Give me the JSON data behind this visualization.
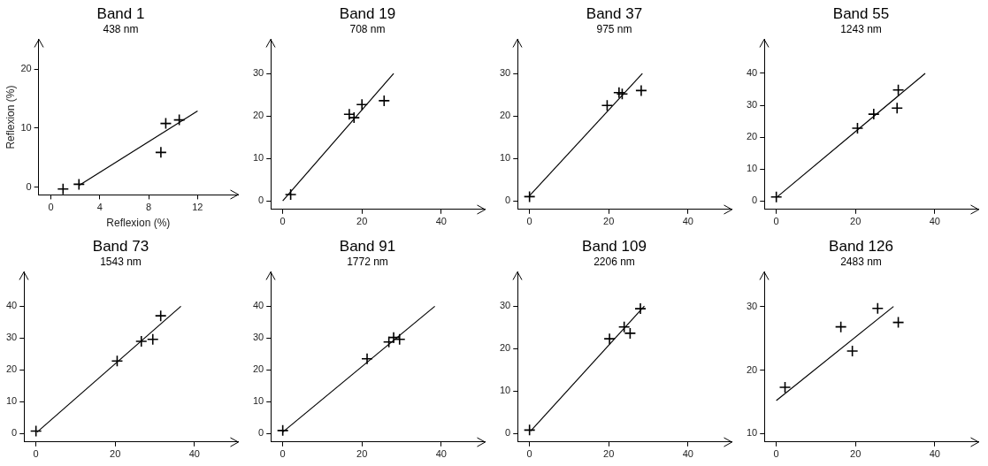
{
  "chart_data": [
    {
      "type": "scatter",
      "title": "Band 1",
      "subtitle": "438 nm",
      "xlabel": "Reflexion (%)",
      "ylabel": "Reflexion (%)",
      "xlim": [
        -1,
        15.3
      ],
      "ylim": [
        -1.3,
        25
      ],
      "xticks": [
        0,
        4,
        8,
        12
      ],
      "yticks": [
        0,
        10,
        20
      ],
      "marker": "cross",
      "grid": false,
      "legend": false,
      "series": [
        {
          "type": "scatter",
          "color": "#000000",
          "x": [
            1.0,
            2.3,
            9.0,
            9.4,
            10.5
          ],
          "values": [
            -0.3,
            0.5,
            5.9,
            10.8,
            11.4
          ]
        },
        {
          "type": "line",
          "color": "#000000",
          "marker": "none",
          "x": [
            2.3,
            12
          ],
          "values": [
            0.3,
            12.9
          ]
        }
      ]
    },
    {
      "type": "scatter",
      "title": "Band 19",
      "subtitle": "708 nm",
      "xlim": [
        -3,
        51
      ],
      "ylim": [
        -2,
        38
      ],
      "xticks": [
        0,
        20,
        40
      ],
      "yticks": [
        0,
        10,
        20,
        30
      ],
      "marker": "cross",
      "grid": false,
      "legend": false,
      "series": [
        {
          "type": "scatter",
          "color": "#000000",
          "x": [
            2,
            16.8,
            18,
            20,
            25.6
          ],
          "values": [
            1.5,
            20.4,
            19.6,
            22.7,
            23.6
          ]
        },
        {
          "type": "line",
          "color": "#000000",
          "marker": "none",
          "x": [
            0,
            28
          ],
          "values": [
            0,
            30
          ]
        }
      ]
    },
    {
      "type": "scatter",
      "title": "Band 37",
      "subtitle": "975 nm",
      "xlim": [
        -3,
        51
      ],
      "ylim": [
        -2,
        38
      ],
      "xticks": [
        0,
        20,
        40
      ],
      "yticks": [
        0,
        10,
        20,
        30
      ],
      "marker": "cross",
      "grid": false,
      "legend": false,
      "series": [
        {
          "type": "scatter",
          "color": "#000000",
          "x": [
            0,
            19.6,
            22.6,
            23.4,
            28.2
          ],
          "values": [
            1,
            22.5,
            25.5,
            25.2,
            26
          ]
        },
        {
          "type": "line",
          "color": "#000000",
          "marker": "none",
          "x": [
            0,
            28.5
          ],
          "values": [
            1.2,
            30
          ]
        }
      ]
    },
    {
      "type": "scatter",
      "title": "Band 55",
      "subtitle": "1243 nm",
      "xlim": [
        -3,
        51
      ],
      "ylim": [
        -2.7,
        50.6
      ],
      "xticks": [
        0,
        20,
        40
      ],
      "yticks": [
        0,
        10,
        20,
        30,
        40
      ],
      "marker": "cross",
      "grid": false,
      "legend": false,
      "series": [
        {
          "type": "scatter",
          "color": "#000000",
          "x": [
            0,
            20.5,
            24.6,
            30.5,
            30.8
          ],
          "values": [
            1.2,
            22.8,
            27.2,
            29.1,
            34.8
          ]
        },
        {
          "type": "line",
          "color": "#000000",
          "marker": "none",
          "x": [
            0.3,
            37.6
          ],
          "values": [
            1.3,
            40
          ]
        }
      ]
    },
    {
      "type": "scatter",
      "title": "Band 73",
      "subtitle": "1543 nm",
      "xlim": [
        -3,
        51
      ],
      "ylim": [
        -2.6,
        50.7
      ],
      "xticks": [
        0,
        20,
        40
      ],
      "yticks": [
        0,
        10,
        20,
        30,
        40
      ],
      "marker": "cross",
      "grid": false,
      "legend": false,
      "series": [
        {
          "type": "scatter",
          "color": "#000000",
          "x": [
            0,
            20.5,
            26.6,
            29.5,
            31.5
          ],
          "values": [
            0.8,
            22.8,
            29,
            29.6,
            37
          ]
        },
        {
          "type": "line",
          "color": "#000000",
          "marker": "none",
          "x": [
            0.3,
            36.6
          ],
          "values": [
            0.5,
            40
          ]
        }
      ]
    },
    {
      "type": "scatter",
      "title": "Band 91",
      "subtitle": "1772 nm",
      "xlim": [
        -3,
        51
      ],
      "ylim": [
        -2.6,
        50.7
      ],
      "xticks": [
        0,
        20,
        40
      ],
      "yticks": [
        0,
        10,
        20,
        30,
        40
      ],
      "marker": "cross",
      "grid": false,
      "legend": false,
      "series": [
        {
          "type": "scatter",
          "color": "#000000",
          "x": [
            0,
            21.3,
            26.8,
            28,
            29.5
          ],
          "values": [
            1,
            23.5,
            28.8,
            30.2,
            29.6
          ]
        },
        {
          "type": "line",
          "color": "#000000",
          "marker": "none",
          "x": [
            0,
            38.4
          ],
          "values": [
            0.5,
            40
          ]
        }
      ]
    },
    {
      "type": "scatter",
      "title": "Band 109",
      "subtitle": "2206 nm",
      "xlim": [
        -3,
        51
      ],
      "ylim": [
        -2,
        38
      ],
      "xticks": [
        0,
        20,
        40
      ],
      "yticks": [
        0,
        10,
        20,
        30
      ],
      "marker": "cross",
      "grid": false,
      "legend": false,
      "series": [
        {
          "type": "scatter",
          "color": "#000000",
          "x": [
            0,
            20.2,
            23.9,
            25.4,
            28
          ],
          "values": [
            0.8,
            22.3,
            25.1,
            23.6,
            29.4
          ]
        },
        {
          "type": "line",
          "color": "#000000",
          "marker": "none",
          "x": [
            0.3,
            29
          ],
          "values": [
            0.6,
            30
          ]
        }
      ]
    },
    {
      "type": "scatter",
      "title": "Band 126",
      "subtitle": "2483 nm",
      "xlim": [
        -3,
        51
      ],
      "ylim": [
        8.7,
        35.4
      ],
      "xticks": [
        0,
        20,
        40
      ],
      "yticks": [
        10,
        20,
        30
      ],
      "marker": "cross",
      "grid": false,
      "legend": false,
      "series": [
        {
          "type": "scatter",
          "color": "#000000",
          "x": [
            2.2,
            16.3,
            19.2,
            25.6,
            30.8
          ],
          "values": [
            17.3,
            26.8,
            23,
            29.7,
            27.5
          ]
        },
        {
          "type": "line",
          "color": "#000000",
          "marker": "none",
          "x": [
            0,
            29.6
          ],
          "values": [
            15.2,
            30
          ]
        }
      ]
    }
  ]
}
